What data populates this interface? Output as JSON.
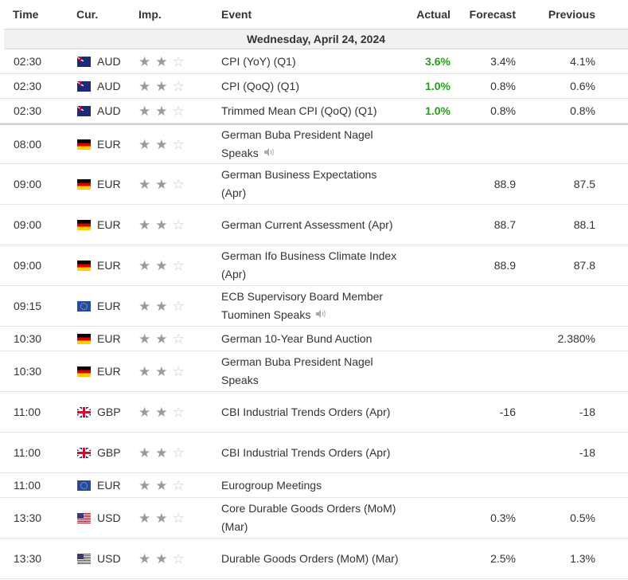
{
  "header": {
    "time": "Time",
    "currency": "Cur.",
    "importance": "Imp.",
    "event": "Event",
    "actual": "Actual",
    "forecast": "Forecast",
    "previous": "Previous"
  },
  "date_label": "Wednesday, April 24, 2024",
  "colors": {
    "actual_positive": "#22a118",
    "star_on": "#9a9a9a",
    "star_off": "#c8c8c8"
  },
  "events": [
    {
      "time": "02:30",
      "flag": "au",
      "currency": "AUD",
      "stars": 2,
      "event": "CPI (YoY) (Q1)",
      "speech": false,
      "actual": "3.6%",
      "forecast": "3.4%",
      "previous": "4.1%"
    },
    {
      "time": "02:30",
      "flag": "au",
      "currency": "AUD",
      "stars": 2,
      "event": "CPI (QoQ) (Q1)",
      "speech": false,
      "actual": "1.0%",
      "forecast": "0.8%",
      "previous": "0.6%"
    },
    {
      "time": "02:30",
      "flag": "au",
      "currency": "AUD",
      "stars": 2,
      "event": "Trimmed Mean CPI (QoQ) (Q1)",
      "speech": false,
      "actual": "1.0%",
      "forecast": "0.8%",
      "previous": "0.8%"
    },
    {
      "time": "08:00",
      "flag": "de",
      "currency": "EUR",
      "stars": 2,
      "event": "German Buba President Nagel Speaks",
      "speech": true,
      "actual": "",
      "forecast": "",
      "previous": ""
    },
    {
      "time": "09:00",
      "flag": "de",
      "currency": "EUR",
      "stars": 2,
      "event": "German Business Expectations (Apr)",
      "speech": false,
      "actual": "",
      "forecast": "88.9",
      "previous": "87.5"
    },
    {
      "time": "09:00",
      "flag": "de",
      "currency": "EUR",
      "stars": 2,
      "event": "German Current Assessment (Apr)",
      "speech": false,
      "actual": "",
      "forecast": "88.7",
      "previous": "88.1"
    },
    {
      "time": "09:00",
      "flag": "de",
      "currency": "EUR",
      "stars": 2,
      "event": "German Ifo Business Climate Index (Apr)",
      "speech": false,
      "actual": "",
      "forecast": "88.9",
      "previous": "87.8"
    },
    {
      "time": "09:15",
      "flag": "eu",
      "currency": "EUR",
      "stars": 2,
      "event": "ECB Supervisory Board Member Tuominen Speaks",
      "speech": true,
      "actual": "",
      "forecast": "",
      "previous": ""
    },
    {
      "time": "10:30",
      "flag": "de",
      "currency": "EUR",
      "stars": 2,
      "event": "German 10-Year Bund Auction",
      "speech": false,
      "actual": "",
      "forecast": "",
      "previous": "2.380%"
    },
    {
      "time": "10:30",
      "flag": "de",
      "currency": "EUR",
      "stars": 2,
      "event": "German Buba President Nagel Speaks",
      "speech": false,
      "actual": "",
      "forecast": "",
      "previous": ""
    },
    {
      "time": "11:00",
      "flag": "gb",
      "currency": "GBP",
      "stars": 2,
      "event": "CBI Industrial Trends Orders (Apr)",
      "speech": false,
      "actual": "",
      "forecast": "-16",
      "previous": "-18"
    },
    {
      "time": "11:00",
      "flag": "gb",
      "currency": "GBP",
      "stars": 2,
      "event": "CBI Industrial Trends Orders (Apr)",
      "speech": false,
      "actual": "",
      "forecast": "",
      "previous": "-18"
    },
    {
      "time": "11:00",
      "flag": "eu",
      "currency": "EUR",
      "stars": 2,
      "event": "Eurogroup Meetings",
      "speech": false,
      "actual": "",
      "forecast": "",
      "previous": ""
    },
    {
      "time": "13:30",
      "flag": "us",
      "currency": "USD",
      "stars": 2,
      "event": "Core Durable Goods Orders (MoM) (Mar)",
      "speech": false,
      "actual": "",
      "forecast": "0.3%",
      "previous": "0.5%"
    },
    {
      "time": "13:30",
      "flag": "us",
      "currency": "USD",
      "stars": 2,
      "event": "Durable Goods Orders (MoM) (Mar)",
      "speech": false,
      "actual": "",
      "forecast": "2.5%",
      "previous": "1.3%"
    }
  ]
}
